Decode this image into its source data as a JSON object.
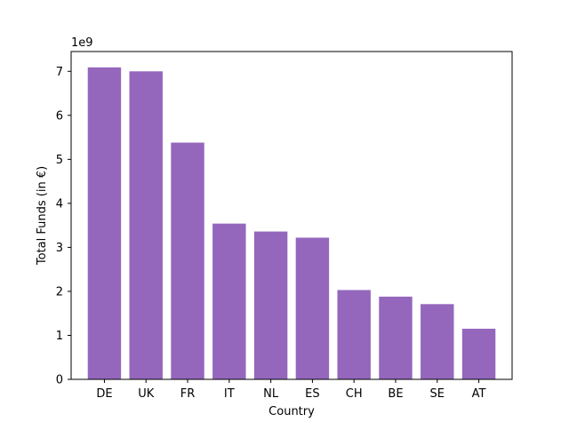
{
  "chart_data": {
    "type": "bar",
    "title": "",
    "xlabel": "Country",
    "ylabel": "Total Funds (in €)",
    "offset_label": "1e9",
    "ylim": [
      0,
      7.45
    ],
    "scale": 1000000000,
    "yticks": [
      0,
      1,
      2,
      3,
      4,
      5,
      6,
      7
    ],
    "ytick_labels": [
      "0",
      "1",
      "2",
      "3",
      "4",
      "5",
      "6",
      "7"
    ],
    "categories": [
      "DE",
      "UK",
      "FR",
      "IT",
      "NL",
      "ES",
      "CH",
      "BE",
      "SE",
      "AT"
    ],
    "values": [
      7.09,
      7.0,
      5.38,
      3.54,
      3.36,
      3.22,
      2.03,
      1.88,
      1.71,
      1.15
    ],
    "bar_color": "#9467bd",
    "grid": false,
    "legend": "none"
  }
}
